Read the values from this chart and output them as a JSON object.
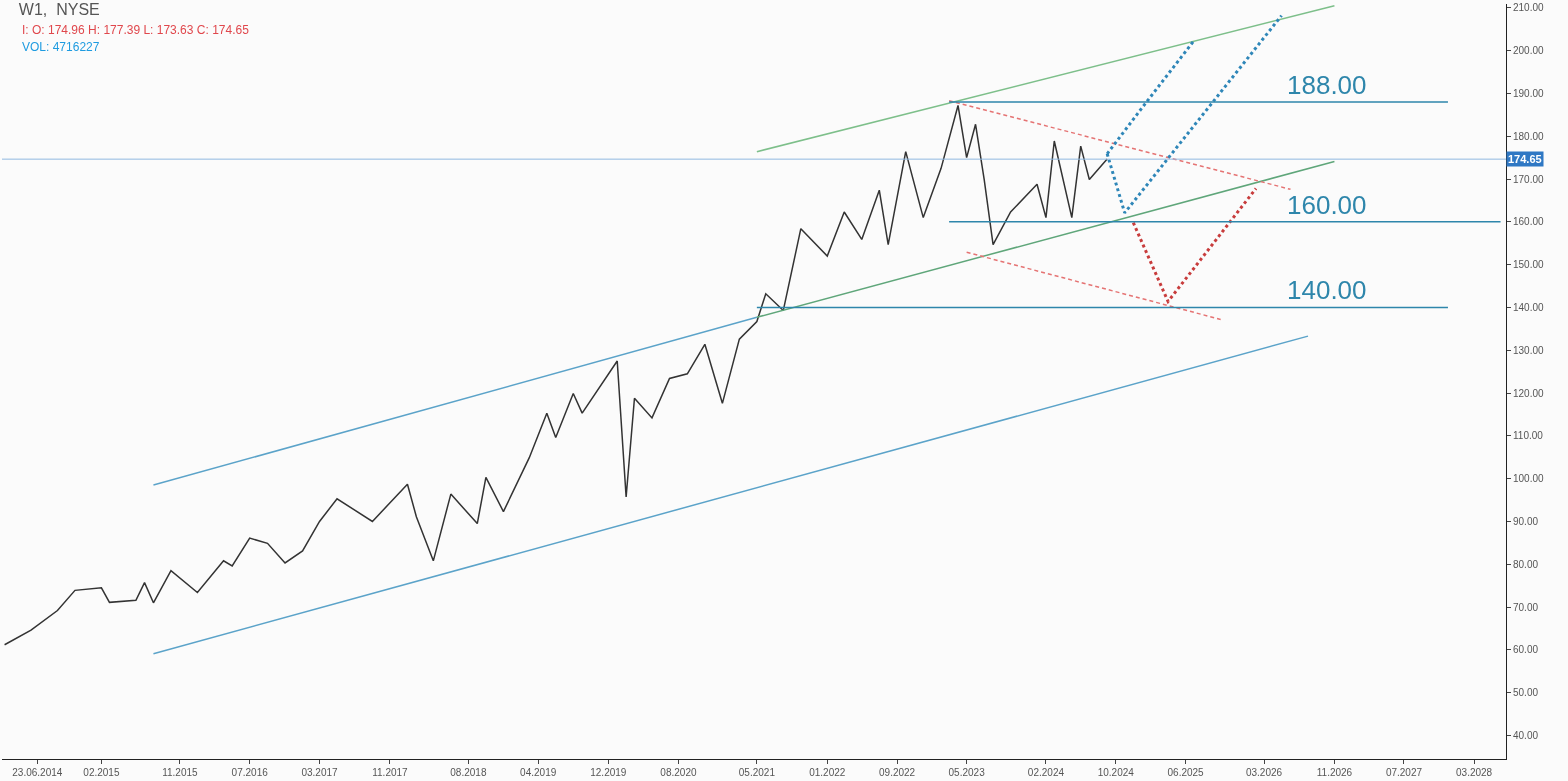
{
  "chart_data": {
    "type": "line",
    "title": "W1,  NYSE",
    "subtitle": "I: O: 174.96 H: 177.39 L: 173.63 C: 174.65",
    "annotations": [
      "VOL: 4716227",
      {
        "text": "188.00",
        "x": "2027-03",
        "y": 188
      },
      {
        "text": "160.00",
        "x": "2027-03",
        "y": 160
      },
      {
        "text": "140.00",
        "x": "2027-03",
        "y": 140
      }
    ],
    "xlim": [
      "2014-02-20",
      "2028-06-20"
    ],
    "xticks": [
      {
        "value": "2014-06-23",
        "label": "23.06.2014"
      },
      {
        "value": "2015-02-01",
        "label": "02.2015"
      },
      {
        "value": "2015-11-01",
        "label": "11.2015"
      },
      {
        "value": "2016-07-01",
        "label": "07.2016"
      },
      {
        "value": "2017-03-01",
        "label": "03.2017"
      },
      {
        "value": "2017-11-01",
        "label": "11.2017"
      },
      {
        "value": "2018-08-01",
        "label": "08.2018"
      },
      {
        "value": "2019-04-01",
        "label": "04.2019"
      },
      {
        "value": "2019-12-01",
        "label": "12.2019"
      },
      {
        "value": "2020-08-01",
        "label": "08.2020"
      },
      {
        "value": "2021-05-01",
        "label": "05.2021"
      },
      {
        "value": "2022-01-01",
        "label": "01.2022"
      },
      {
        "value": "2022-09-01",
        "label": "09.2022"
      },
      {
        "value": "2023-05-01",
        "label": "05.2023"
      },
      {
        "value": "2024-02-01",
        "label": "02.2024"
      },
      {
        "value": "2024-10-01",
        "label": "10.2024"
      },
      {
        "value": "2025-06-01",
        "label": "06.2025"
      },
      {
        "value": "2026-03-01",
        "label": "03.2026"
      },
      {
        "value": "2026-11-01",
        "label": "11.2026"
      },
      {
        "value": "2027-07-01",
        "label": "07.2027"
      },
      {
        "value": "2028-03-01",
        "label": "03.2028"
      }
    ],
    "ylim": [
      34.5,
      210.9
    ],
    "yticks": [
      {
        "value": 40,
        "label": "40.00"
      },
      {
        "value": 50,
        "label": "50.00"
      },
      {
        "value": 60,
        "label": "60.00"
      },
      {
        "value": 70,
        "label": "70.00"
      },
      {
        "value": 80,
        "label": "80.00"
      },
      {
        "value": 90,
        "label": "90.00"
      },
      {
        "value": 100,
        "label": "100.00"
      },
      {
        "value": 110,
        "label": "110.00"
      },
      {
        "value": 120,
        "label": "120.00"
      },
      {
        "value": 130,
        "label": "130.00"
      },
      {
        "value": 140,
        "label": "140.00"
      },
      {
        "value": 150,
        "label": "150.00"
      },
      {
        "value": 160,
        "label": "160.00"
      },
      {
        "value": 170,
        "label": "170.00"
      },
      {
        "value": 180,
        "label": "180.00"
      },
      {
        "value": 190,
        "label": "190.00"
      },
      {
        "value": 200,
        "label": "200.00"
      },
      {
        "value": 210,
        "label": "210.00"
      }
    ],
    "ref_lines": [
      {
        "axis": "y",
        "value": 174.65,
        "label": "174.65",
        "color": "#8fb8e0"
      }
    ],
    "marker": "none",
    "series": [
      {
        "color": "#333333",
        "line_style": "solid",
        "x": [
          "2014-03",
          "2014-06",
          "2014-09",
          "2014-11",
          "2015-02",
          "2015-03",
          "2015-06",
          "2015-07",
          "2015-08",
          "2015-10",
          "2016-01",
          "2016-04",
          "2016-05",
          "2016-07",
          "2016-09",
          "2016-11",
          "2017-01",
          "2017-03",
          "2017-05",
          "2017-09",
          "2018-01",
          "2018-02",
          "2018-04",
          "2018-06",
          "2018-09",
          "2018-10",
          "2018-12",
          "2019-03",
          "2019-05",
          "2019-06",
          "2019-08",
          "2019-09",
          "2020-01",
          "2020-02",
          "2020-03",
          "2020-05",
          "2020-07",
          "2020-09",
          "2020-11",
          "2021-01",
          "2021-03",
          "2021-05",
          "2021-06",
          "2021-08",
          "2021-10",
          "2022-01",
          "2022-03",
          "2022-05",
          "2022-07",
          "2022-08",
          "2022-10",
          "2022-12",
          "2023-02",
          "2023-04",
          "2023-05",
          "2023-06",
          "2023-07",
          "2023-08",
          "2023-10",
          "2024-01",
          "2024-02",
          "2024-03",
          "2024-05",
          "2024-06",
          "2024-07",
          "2024-09"
        ],
        "values": [
          61.2,
          64.6,
          69.2,
          73.9,
          74.5,
          71.1,
          71.6,
          75.7,
          71,
          78.5,
          73.4,
          80.8,
          79.6,
          86.1,
          84.9,
          80.3,
          83.1,
          90,
          95.3,
          90,
          98.7,
          91.1,
          80.8,
          96.4,
          89.5,
          100.3,
          92.3,
          104.9,
          115.3,
          109.6,
          119.9,
          115.3,
          127.5,
          95.7,
          118.8,
          114.2,
          123.4,
          124.5,
          131.4,
          117.6,
          132.6,
          136.7,
          143.2,
          139.3,
          158.4,
          152,
          162.3,
          155.9,
          167.4,
          154.7,
          176.4,
          161,
          172.5,
          187.2,
          175,
          182.8,
          169.9,
          154.7,
          162.3,
          168.8,
          161,
          178.9,
          161,
          177.7,
          169.9,
          174.7
        ]
      },
      {
        "color": "#5ba3c9",
        "line_style": "solid",
        "x": [
          "2015-08",
          "2021-05"
        ],
        "values": [
          98.5,
          137.7
        ]
      },
      {
        "color": "#5ba3c9",
        "line_style": "solid",
        "x": [
          "2015-08",
          "2026-08"
        ],
        "values": [
          59.1,
          133.3
        ]
      },
      {
        "color": "#7dbf8a",
        "line_style": "solid",
        "x": [
          "2021-05",
          "2026-11"
        ],
        "values": [
          176.4,
          210.5
        ]
      },
      {
        "color": "#5fa67a",
        "line_style": "solid",
        "x": [
          "2021-05",
          "2026-11"
        ],
        "values": [
          137.7,
          174.1
        ]
      },
      {
        "color": "#e57373",
        "line_style": "dashed",
        "x": [
          "2023-03",
          "2026-06"
        ],
        "values": [
          188.3,
          167.6
        ]
      },
      {
        "color": "#e57373",
        "line_style": "dashed",
        "x": [
          "2023-05",
          "2025-10"
        ],
        "values": [
          152.9,
          137.2
        ]
      },
      {
        "color": "#2e86b8",
        "line_style": "dotted",
        "x": [
          "2024-09",
          "2025-01",
          "2025-07"
        ],
        "values": [
          175.9,
          186.7,
          202.4
        ]
      },
      {
        "color": "#2e86b8",
        "line_style": "dotted",
        "x": [
          "2024-09",
          "2024-11",
          "2026-05"
        ],
        "values": [
          175.9,
          162.1,
          208.2
        ]
      },
      {
        "color": "#c83c3c",
        "line_style": "dotted",
        "x": [
          "2024-12",
          "2025-04",
          "2026-02"
        ],
        "values": [
          159.8,
          141.4,
          167.8
        ]
      },
      {
        "color": "#2e86ab",
        "line_style": "solid",
        "x": [
          "2023-03",
          "2027-12"
        ],
        "values": [
          188,
          188
        ]
      },
      {
        "color": "#2e86ab",
        "line_style": "solid",
        "x": [
          "2023-03",
          "2028-06"
        ],
        "values": [
          160,
          160
        ]
      },
      {
        "color": "#2e86ab",
        "line_style": "solid",
        "x": [
          "2021-05",
          "2027-12"
        ],
        "values": [
          140,
          140
        ]
      }
    ]
  }
}
